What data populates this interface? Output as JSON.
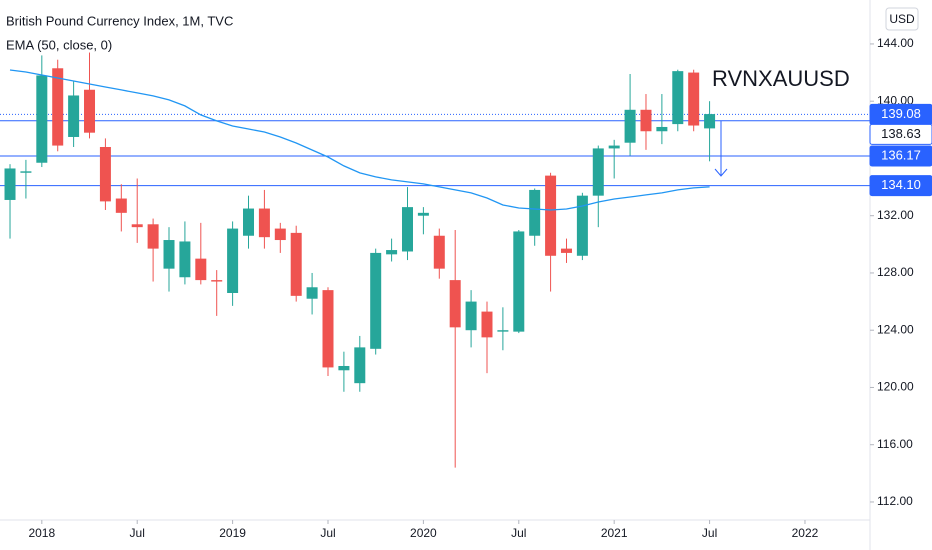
{
  "chart_data": {
    "type": "candlestick",
    "title": "British Pound Currency Index, 1M, TVC",
    "indicator": "EMA (50, close, 0)",
    "currency": "USD",
    "annotation": "RVNXAUUSD",
    "x": [
      0,
      1,
      2,
      3,
      4,
      5,
      6,
      7,
      8,
      9,
      10,
      11,
      12,
      13,
      14,
      15,
      16,
      17,
      18,
      19,
      20,
      21,
      22,
      23,
      24,
      25,
      26,
      27,
      28,
      29,
      30,
      31,
      32,
      33,
      34,
      35,
      36,
      37,
      38,
      39,
      40,
      41,
      42,
      43,
      44
    ],
    "open": [
      133.1,
      135.0,
      135.7,
      142.3,
      137.5,
      140.8,
      136.8,
      133.2,
      131.4,
      131.4,
      128.3,
      127.7,
      129.0,
      127.5,
      126.6,
      130.6,
      132.5,
      131.1,
      130.8,
      126.2,
      126.8,
      121.2,
      120.3,
      122.7,
      129.3,
      129.5,
      132.0,
      130.6,
      127.5,
      124.0,
      125.3,
      123.9,
      123.9,
      130.6,
      134.8,
      129.7,
      129.2,
      133.4,
      136.7,
      137.1,
      139.4,
      137.9,
      138.4,
      142.0,
      138.1
    ],
    "high": [
      135.6,
      135.9,
      143.2,
      142.9,
      141.4,
      143.4,
      137.4,
      134.2,
      134.6,
      131.8,
      131.2,
      131.6,
      131.5,
      128.2,
      131.6,
      133.4,
      133.8,
      131.5,
      131.3,
      128.0,
      127.0,
      122.5,
      123.6,
      129.7,
      130.4,
      134.0,
      132.6,
      131.1,
      131.0,
      126.8,
      126.0,
      125.6,
      131.0,
      133.9,
      135.0,
      130.4,
      133.6,
      136.9,
      137.3,
      141.9,
      140.5,
      140.5,
      142.2,
      142.2,
      140.0
    ],
    "low": [
      130.4,
      133.2,
      135.4,
      136.5,
      136.8,
      137.4,
      132.4,
      130.9,
      130.1,
      127.4,
      126.7,
      127.2,
      127.2,
      125.0,
      125.7,
      129.7,
      129.7,
      129.4,
      126.0,
      125.1,
      120.8,
      119.7,
      119.7,
      122.3,
      128.8,
      128.9,
      130.7,
      127.6,
      114.4,
      122.8,
      121.0,
      122.6,
      123.8,
      129.9,
      126.7,
      128.7,
      128.9,
      131.2,
      134.6,
      136.2,
      136.6,
      137.0,
      137.9,
      137.9,
      135.8
    ],
    "close": [
      135.3,
      135.1,
      141.8,
      136.9,
      140.4,
      137.8,
      133.0,
      132.2,
      131.2,
      129.7,
      130.3,
      130.2,
      127.5,
      127.4,
      131.1,
      132.5,
      130.5,
      130.3,
      126.4,
      127.0,
      121.4,
      121.5,
      122.8,
      129.4,
      129.6,
      132.6,
      132.2,
      128.3,
      124.2,
      126.0,
      123.5,
      124.0,
      130.9,
      133.8,
      129.2,
      129.4,
      133.4,
      136.7,
      136.9,
      139.4,
      137.9,
      138.2,
      142.1,
      138.3,
      139.1
    ],
    "up_color": "#26a69a",
    "down_color": "#ef5350",
    "ema": {
      "color": "#2196f3",
      "values": [
        142.18,
        142.04,
        141.83,
        141.62,
        141.41,
        141.2,
        140.99,
        140.79,
        140.58,
        140.37,
        140.09,
        139.67,
        139.04,
        138.62,
        138.27,
        138.06,
        137.85,
        137.5,
        137.08,
        136.59,
        136.1,
        135.48,
        134.99,
        134.71,
        134.5,
        134.36,
        134.22,
        134.01,
        133.8,
        133.59,
        133.24,
        132.75,
        132.54,
        132.47,
        132.4,
        132.47,
        132.68,
        132.96,
        133.17,
        133.31,
        133.45,
        133.59,
        133.8,
        133.94,
        134.01
      ]
    },
    "price_lines": [
      139.08,
      138.63,
      136.17,
      {
        "value": 134.1,
        "label": "134.10"
      }
    ],
    "line_color": "#2962ff",
    "xlim": [
      -0.63,
      54.09
    ],
    "xticks": [
      {
        "value": 2,
        "label": "2018"
      },
      {
        "value": 8,
        "label": "Jul"
      },
      {
        "value": 14,
        "label": "2019"
      },
      {
        "value": 20,
        "label": "Jul"
      },
      {
        "value": 26,
        "label": "2020"
      },
      {
        "value": 32,
        "label": "Jul"
      },
      {
        "value": 38,
        "label": "2021"
      },
      {
        "value": 44,
        "label": "Jul"
      },
      {
        "value": 50,
        "label": "2022"
      }
    ],
    "ylim": [
      110.74,
      147.07
    ],
    "yticks": [
      {
        "value": 112,
        "label": "112.00"
      },
      {
        "value": 116,
        "label": "116.00"
      },
      {
        "value": 120,
        "label": "120.00"
      },
      {
        "value": 124,
        "label": "124.00"
      },
      {
        "value": 128,
        "label": "128.00"
      },
      {
        "value": 132,
        "label": "132.00"
      },
      {
        "value": 136,
        "label": "136.00"
      },
      {
        "value": 140,
        "label": "140.00"
      },
      {
        "value": 144,
        "label": "144.00"
      }
    ]
  }
}
